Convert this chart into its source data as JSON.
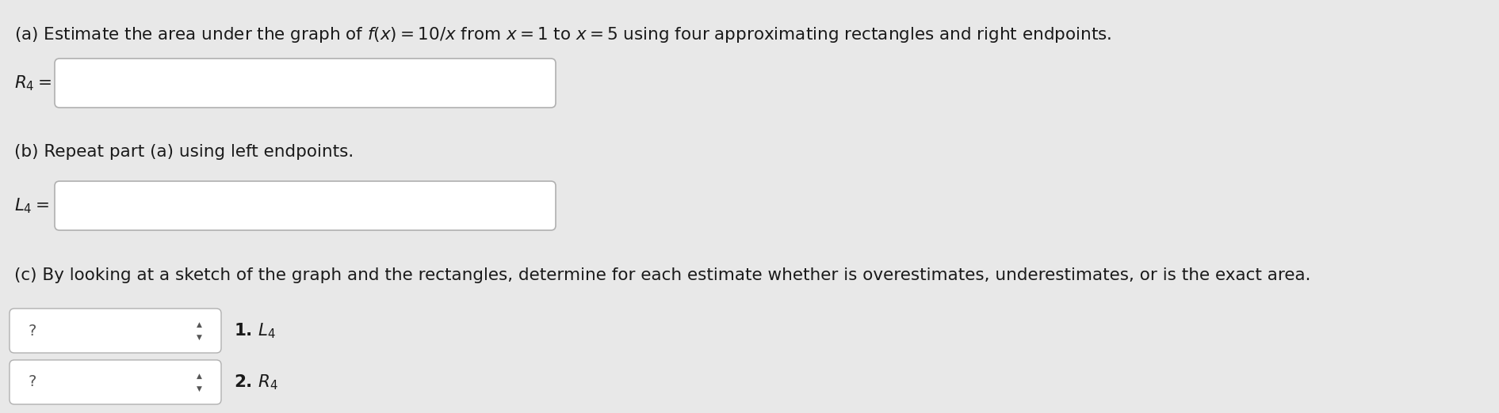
{
  "bg_color": "#e8e8e8",
  "text_color": "#1a1a1a",
  "box_color": "#ffffff",
  "box_border_color": "#b0b0b0",
  "fig_width": 18.91,
  "fig_height": 5.22,
  "line_a": "(a) Estimate the area under the graph of $f(x) = 10/x$ from $x = 1$ to $x = 5$ using four approximating rectangles and right endpoints.",
  "label_R4": "$R_4 =$",
  "line_b": "(b) Repeat part (a) using left endpoints.",
  "label_L4": "$L_4 =$",
  "line_c": "(c) By looking at a sketch of the graph and the rectangles, determine for each estimate whether is overestimates, underestimates, or is the exact area.",
  "dropdown1_text": "?",
  "dropdown1_label": "1. $L_4$",
  "dropdown2_text": "?",
  "dropdown2_label": "2. $R_4$",
  "font_size_main": 15.5,
  "font_size_label": 15.5,
  "font_size_dropdown": 14,
  "font_size_dd_label": 15.5
}
